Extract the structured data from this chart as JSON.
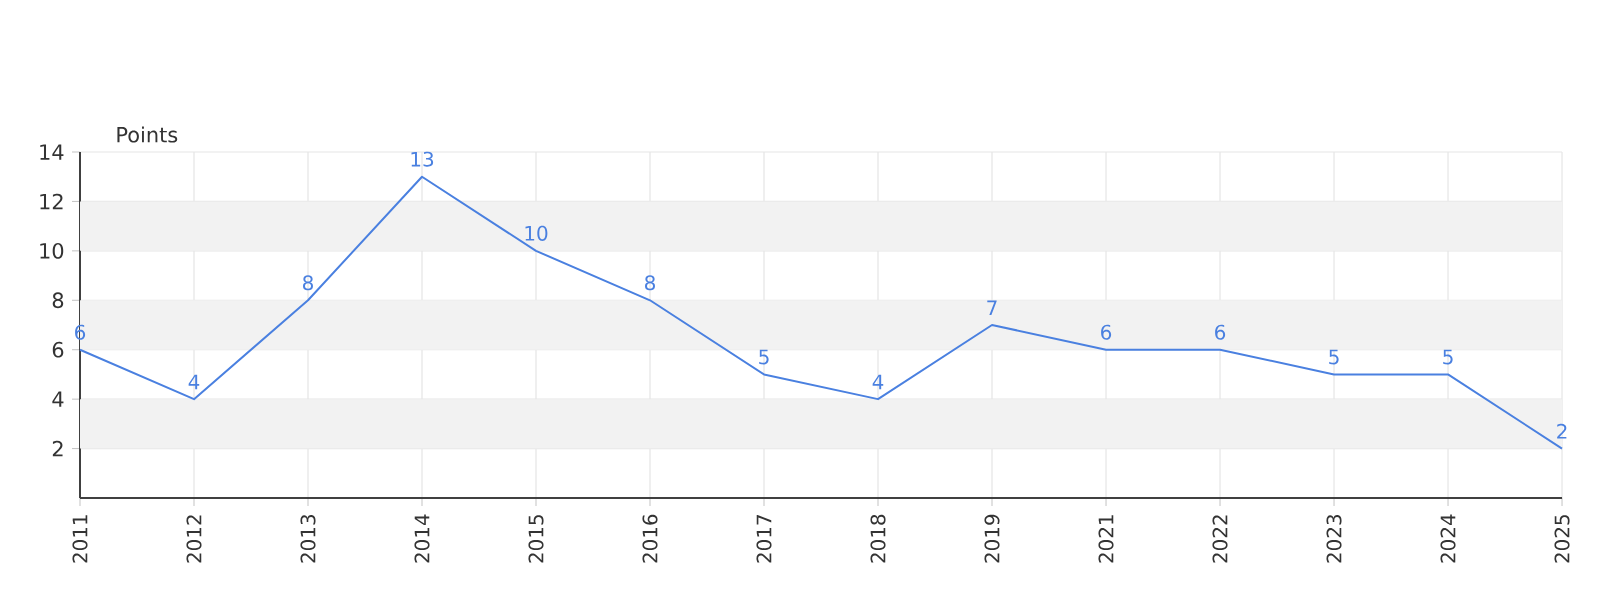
{
  "chart_data": {
    "type": "line",
    "ylabel": "Points",
    "categories": [
      "2011",
      "2012",
      "2013",
      "2014",
      "2015",
      "2016",
      "2017",
      "2018",
      "2019",
      "2021",
      "2022",
      "2023",
      "2024",
      "2025"
    ],
    "series": [
      {
        "color": "#4a80e0",
        "values": [
          6,
          4,
          8,
          13,
          10,
          8,
          5,
          4,
          7,
          6,
          6,
          5,
          5,
          2
        ]
      }
    ],
    "ylim": [
      0,
      14
    ],
    "yticks": [
      2,
      4,
      6,
      8,
      10,
      12,
      14
    ],
    "grid": true,
    "data_labels": true,
    "marker": "none",
    "line_style": "solid",
    "bands": [
      {
        "axis": "y",
        "from": 2,
        "to": 4,
        "color": "#f2f2f2"
      },
      {
        "axis": "y",
        "from": 6,
        "to": 8,
        "color": "#f2f2f2"
      },
      {
        "axis": "y",
        "from": 10,
        "to": 12,
        "color": "#f2f2f2"
      }
    ]
  }
}
